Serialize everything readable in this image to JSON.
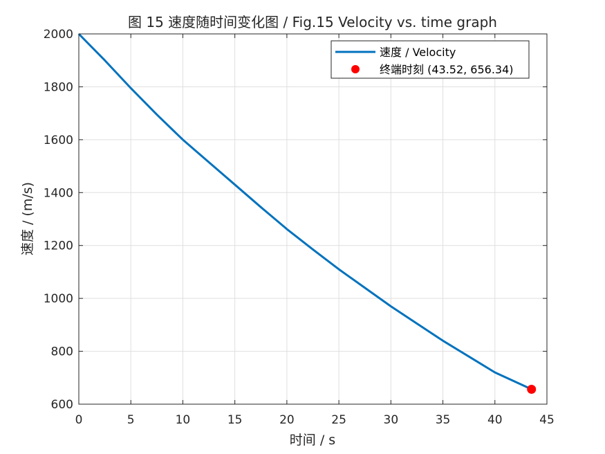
{
  "chart_data": {
    "type": "line",
    "title": "图 15 速度随时间变化图 / Fig.15 Velocity vs. time graph",
    "xlabel": "时间 / s",
    "ylabel": "速度 / (m/s)",
    "xlim": [
      0,
      45
    ],
    "ylim": [
      600,
      2000
    ],
    "xticks": [
      0,
      5,
      10,
      15,
      20,
      25,
      30,
      35,
      40,
      45
    ],
    "yticks": [
      600,
      800,
      1000,
      1200,
      1400,
      1600,
      1800,
      2000
    ],
    "grid": true,
    "legend_position": "top-right",
    "series": [
      {
        "name": "速度 / Velocity",
        "type": "line",
        "color": "#0072BD",
        "x": [
          0,
          2.5,
          5,
          7.5,
          10,
          12.5,
          15,
          17.5,
          20,
          22.5,
          25,
          27.5,
          30,
          32.5,
          35,
          37.5,
          40,
          42.5,
          43.52
        ],
        "y": [
          2000,
          1900,
          1795,
          1695,
          1600,
          1515,
          1430,
          1345,
          1262,
          1185,
          1110,
          1040,
          970,
          905,
          840,
          780,
          720,
          675,
          656.34
        ]
      },
      {
        "name": "终端时刻 (43.52, 656.34)",
        "type": "marker",
        "color": "#FF0000",
        "x": [
          43.52
        ],
        "y": [
          656.34
        ]
      }
    ]
  }
}
